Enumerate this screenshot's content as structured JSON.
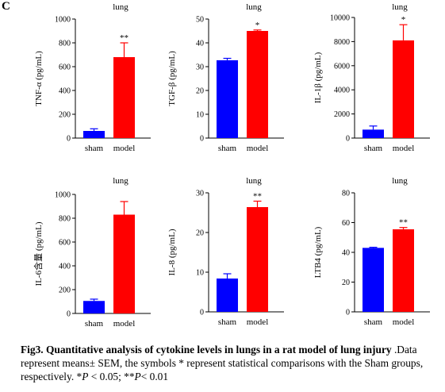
{
  "panel_label": "C",
  "caption": {
    "title": "Fig3. Quantitative analysis of  cytokine levels in lungs in a rat model of lung injury",
    "body_1": " .Data represent means± SEM, the symbols * represent statistical comparisons with the Sham  groups, respectively. *",
    "p": "P",
    "body_2": " < 0.05;  **",
    "p2": "P",
    "body_3": "< 0.01"
  },
  "colors": {
    "sham": "#0000ff",
    "model": "#ff0000"
  },
  "chart_data": [
    {
      "type": "bar",
      "title": "lung",
      "ylabel": "TNF-α (pg/mL)",
      "categories": [
        "sham",
        "model"
      ],
      "values": [
        60,
        680
      ],
      "errors": [
        18,
        120
      ],
      "ylim": [
        0,
        1000
      ],
      "yticks": [
        "0",
        "200",
        "400",
        "600",
        "800",
        "1000"
      ],
      "significance": [
        "",
        "**"
      ]
    },
    {
      "type": "bar",
      "title": "lung",
      "ylabel": "TGF-β (pg/mL)",
      "categories": [
        "sham",
        "model"
      ],
      "values": [
        32.7,
        45
      ],
      "errors": [
        0.8,
        0.4
      ],
      "ylim": [
        0,
        50
      ],
      "yticks": [
        "0",
        "10",
        "20",
        "30",
        "40",
        "50"
      ],
      "significance": [
        "",
        "*"
      ]
    },
    {
      "type": "bar",
      "title": "lung",
      "ylabel": "IL-1β (pg/mL)",
      "categories": [
        "sham",
        "model"
      ],
      "values": [
        700,
        8100
      ],
      "errors": [
        300,
        1300
      ],
      "ylim": [
        0,
        10000
      ],
      "yticks": [
        "0",
        "2000",
        "4000",
        "6000",
        "8000",
        "10000"
      ],
      "significance": [
        "",
        "*"
      ]
    },
    {
      "type": "bar",
      "title": "lung",
      "ylabel": "IL-6含量 (pg/mL)",
      "categories": [
        "sham",
        "model"
      ],
      "values": [
        105,
        830
      ],
      "errors": [
        15,
        110
      ],
      "ylim": [
        0,
        1000
      ],
      "yticks": [
        "0",
        "200",
        "400",
        "600",
        "800",
        "1000"
      ],
      "significance": [
        "",
        ""
      ]
    },
    {
      "type": "bar",
      "title": "lung",
      "ylabel": "IL-8 (pg/mL)",
      "categories": [
        "sham",
        "model"
      ],
      "values": [
        8.4,
        26.4
      ],
      "errors": [
        1.2,
        1.5
      ],
      "ylim": [
        0,
        30
      ],
      "yticks": [
        "0",
        "10",
        "20",
        "30"
      ],
      "significance": [
        "",
        "**"
      ]
    },
    {
      "type": "bar",
      "title": "lung",
      "ylabel": "LTB4 (pg/mL)",
      "categories": [
        "sham",
        "model"
      ],
      "values": [
        43,
        55.5
      ],
      "errors": [
        0.4,
        1.2
      ],
      "ylim": [
        0,
        80
      ],
      "yticks": [
        "0",
        "20",
        "40",
        "60",
        "80"
      ],
      "significance": [
        "",
        "**"
      ]
    }
  ]
}
